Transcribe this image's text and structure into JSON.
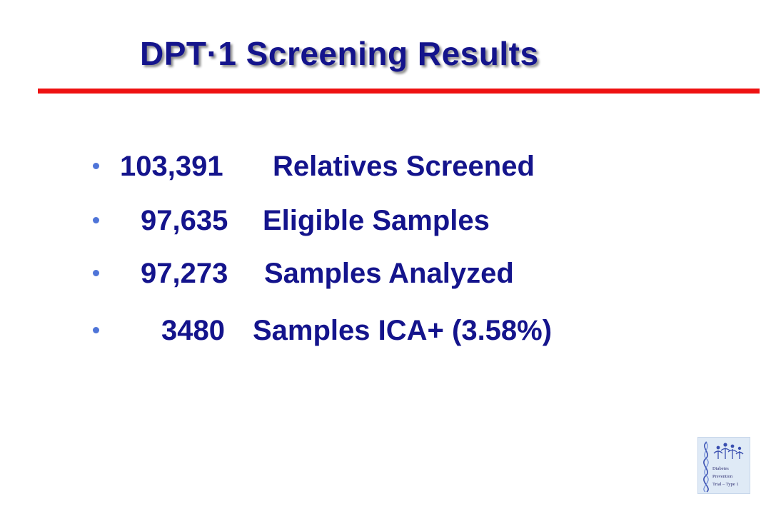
{
  "slide": {
    "title": "DPT·1 Screening Results",
    "bullets": [
      {
        "number": "103,391",
        "label": "Relatives Screened"
      },
      {
        "number": "97,635",
        "label": "Eligible Samples"
      },
      {
        "number": "97,273",
        "label": "Samples Analyzed"
      },
      {
        "number": "3480",
        "label": "Samples ICA+ (3.58%)"
      }
    ]
  },
  "logo": {
    "lines": [
      "Diabetes",
      "Prevention",
      "Trial – Type 1"
    ]
  },
  "colors": {
    "title": "#14148c",
    "rule": "#ee1111",
    "bullet_dot": "#4e74d8",
    "logo_bg": "#dfeaf6"
  }
}
